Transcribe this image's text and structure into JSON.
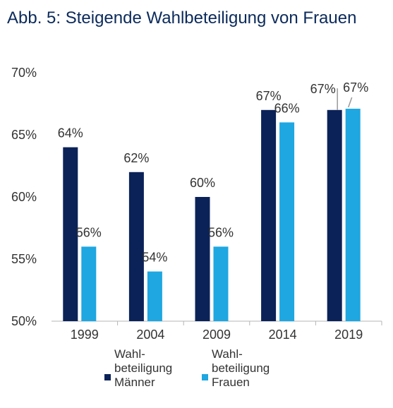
{
  "chart_data": {
    "type": "bar",
    "title": "Abb. 5: Steigende Wahlbeteiligung von Frauen",
    "categories": [
      "1999",
      "2004",
      "2009",
      "2014",
      "2019"
    ],
    "series": [
      {
        "name": "Wahl-\nbeteiligung\nMänner",
        "values": [
          64,
          62,
          60,
          67,
          67
        ],
        "labels": [
          "64%",
          "62%",
          "60%",
          "67%",
          "67%"
        ],
        "color": "#0b2258"
      },
      {
        "name": "Wahl-\nbeteiligung\nFrauen",
        "values": [
          56,
          54,
          56,
          66,
          67.1
        ],
        "labels": [
          "56%",
          "54%",
          "56%",
          "66%",
          "67%"
        ],
        "color": "#1ea7e1"
      }
    ],
    "ylim": [
      50,
      70
    ],
    "yticks": [
      "50%",
      "55%",
      "60%",
      "65%",
      "70%"
    ],
    "xlabel": "",
    "ylabel": "",
    "grid": false,
    "legend_position": "bottom"
  }
}
